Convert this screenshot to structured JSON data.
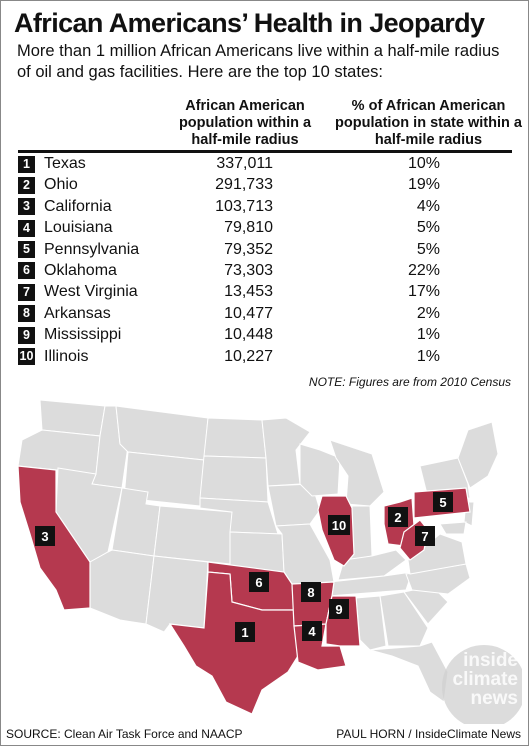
{
  "title": "African Americans’ Health in Jeopardy",
  "subtitle": "More than 1 million African Americans live within a half-mile radius of oil and gas facilities. Here are the top 10 states:",
  "columns": {
    "population": "African American population within a half-mile radius",
    "percent": "% of African American population in state within a half-mile radius"
  },
  "rows": [
    {
      "rank": "1",
      "state": "Texas",
      "population": "337,011",
      "percent": "10%"
    },
    {
      "rank": "2",
      "state": "Ohio",
      "population": "291,733",
      "percent": "19%"
    },
    {
      "rank": "3",
      "state": "California",
      "population": "103,713",
      "percent": "4%"
    },
    {
      "rank": "4",
      "state": "Louisiana",
      "population": "79,810",
      "percent": "5%"
    },
    {
      "rank": "5",
      "state": "Pennsylvania",
      "population": "79,352",
      "percent": "5%"
    },
    {
      "rank": "6",
      "state": "Oklahoma",
      "population": "73,303",
      "percent": "22%"
    },
    {
      "rank": "7",
      "state": "West Virginia",
      "population": "13,453",
      "percent": "17%"
    },
    {
      "rank": "8",
      "state": "Arkansas",
      "population": "10,477",
      "percent": "2%"
    },
    {
      "rank": "9",
      "state": "Mississippi",
      "population": "10,448",
      "percent": "1%"
    },
    {
      "rank": "10",
      "state": "Illinois",
      "population": "10,227",
      "percent": "1%"
    }
  ],
  "note": "NOTE: Figures are from 2010 Census",
  "map": {
    "labels": [
      "1",
      "2",
      "3",
      "4",
      "5",
      "6",
      "7",
      "8",
      "9",
      "10"
    ]
  },
  "colors": {
    "highlight": "#b5394f",
    "base_state": "#dcdcdc",
    "border": "#ffffff",
    "badge": "#111111"
  },
  "source": "SOURCE: Clean Air Task Force and NAACP",
  "credit": "PAUL HORN / InsideClimate News",
  "logo": {
    "line1": "inside",
    "line2": "climate",
    "line3": "news"
  }
}
